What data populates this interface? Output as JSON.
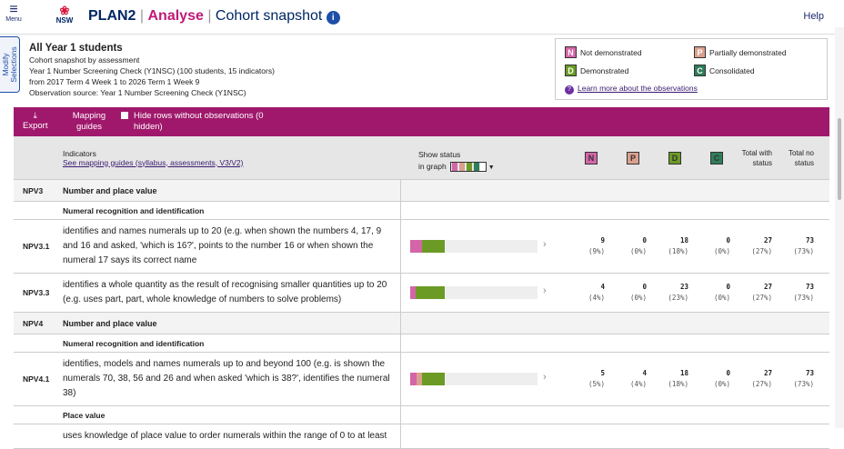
{
  "topbar": {
    "menu": "Menu",
    "logo": "NSW",
    "app": "PLAN2",
    "section": "Analyse",
    "page": "Cohort snapshot",
    "help": "Help"
  },
  "side_tab": "Modify Selections",
  "summary": {
    "title": "All Year 1 students",
    "lines": [
      "Cohort snapshot by assessment",
      "Year 1 Number Screening Check (Y1NSC) (100 students, 15 indicators)",
      "from 2017 Term 4 Week 1 to 2026 Term 1 Week 9",
      "Observation source: Year 1 Number Screening Check (Y1NSC)"
    ]
  },
  "legend": {
    "items": [
      {
        "key": "N",
        "label": "Not demonstrated",
        "color": "#d466a8"
      },
      {
        "key": "P",
        "label": "Partially demonstrated",
        "color": "#dba08e"
      },
      {
        "key": "D",
        "label": "Demonstrated",
        "color": "#6c9b25"
      },
      {
        "key": "C",
        "label": "Consolidated",
        "color": "#2f7d5a"
      }
    ],
    "link": "Learn more about the observations"
  },
  "toolbar": {
    "export": "Export",
    "mapping": "Mapping guides",
    "hide": "Hide rows without observations (0 hidden)"
  },
  "table": {
    "headers": {
      "indicators": "Indicators",
      "mapping_link": "See mapping guides (syllabus, assessments, V3/V2)",
      "show_status": [
        "Show status",
        "in graph"
      ],
      "total_with": "Total with status",
      "total_no": "Total no status"
    },
    "rows": [
      {
        "code": "NPV3",
        "label": "Number and place value"
      },
      {
        "label": "Numeral recognition and identification"
      },
      {
        "code": "NPV3.1",
        "text": "identifies and names numerals up to 20 (e.g. when shown the numbers 4, 17, 9 and 16 and asked, 'which is 16?', points to the number 16 or when shown the numeral 17 says its correct name",
        "counts": [
          9,
          0,
          18,
          0
        ],
        "percents": [
          "(9%)",
          "(0%)",
          "(18%)",
          "(0%)"
        ],
        "total_with": 27,
        "total_with_pct": "(27%)",
        "total_no": 73,
        "total_no_pct": "(73%)"
      },
      {
        "code": "NPV3.3",
        "text": "identifies a whole quantity as the result of recognising smaller quantities up to 20 (e.g. uses part, part, whole knowledge of numbers to solve problems)",
        "counts": [
          4,
          0,
          23,
          0
        ],
        "percents": [
          "(4%)",
          "(0%)",
          "(23%)",
          "(0%)"
        ],
        "total_with": 27,
        "total_with_pct": "(27%)",
        "total_no": 73,
        "total_no_pct": "(73%)"
      },
      {
        "code": "NPV4",
        "label": "Number and place value"
      },
      {
        "label": "Numeral recognition and identification"
      },
      {
        "code": "NPV4.1",
        "text": "identifies, models and names numerals up to and beyond 100 (e.g. is shown the numerals 70, 38, 56 and 26 and when asked 'which is 38?', identifies the numeral 38)",
        "counts": [
          5,
          4,
          18,
          0
        ],
        "percents": [
          "(5%)",
          "(4%)",
          "(18%)",
          "(0%)"
        ],
        "total_with": 27,
        "total_with_pct": "(27%)",
        "total_no": 73,
        "total_no_pct": "(73%)"
      },
      {
        "label": "Place value"
      },
      {
        "text": "uses knowledge of place value to order numerals within the range of 0 to at least"
      }
    ]
  }
}
